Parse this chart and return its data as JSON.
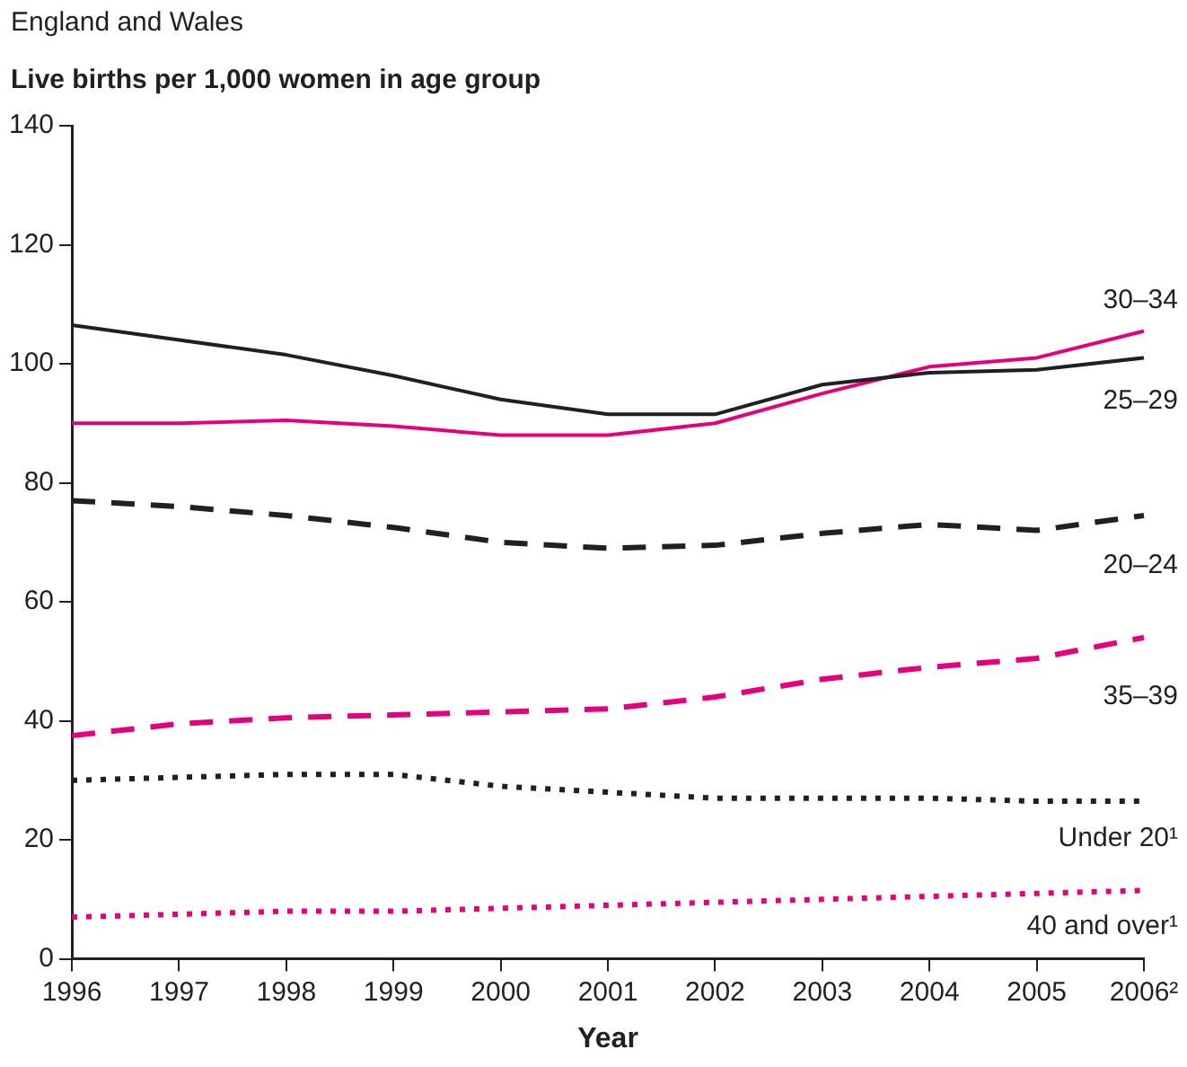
{
  "chart_data": {
    "type": "line",
    "title": "England and Wales",
    "ylabel": "Live births per 1,000 women in age group",
    "xlabel": "Year",
    "categories": [
      "1996",
      "1997",
      "1998",
      "1999",
      "2000",
      "2001",
      "2002",
      "2003",
      "2004",
      "2005",
      "2006²"
    ],
    "ylim": [
      0,
      140
    ],
    "yticks": [
      0,
      20,
      40,
      60,
      80,
      100,
      120,
      140
    ],
    "grid": false,
    "legend": false,
    "marker": "none",
    "series": [
      {
        "name": "25–29",
        "color": "#231f20",
        "line_style": "solid",
        "values": [
          106.5,
          104,
          101.5,
          98,
          94,
          91.5,
          91.5,
          96.5,
          98.5,
          99,
          101
        ]
      },
      {
        "name": "30–34",
        "color": "#e6007e",
        "line_style": "solid",
        "values": [
          90,
          90,
          90.5,
          89.5,
          88,
          88,
          90,
          95,
          99.5,
          101,
          105.5
        ]
      },
      {
        "name": "20–24",
        "color": "#231f20",
        "line_style": "dashed",
        "values": [
          77,
          76,
          74.5,
          72.5,
          70,
          69,
          69.5,
          71.5,
          73,
          72,
          74.5
        ]
      },
      {
        "name": "35–39",
        "color": "#e6007e",
        "line_style": "dashed",
        "values": [
          37.5,
          39.5,
          40.5,
          41,
          41.5,
          42,
          44,
          47,
          49,
          50.5,
          54
        ]
      },
      {
        "name": "Under 20¹",
        "color": "#231f20",
        "line_style": "dotted",
        "values": [
          30,
          30.5,
          31,
          31,
          29,
          28,
          27,
          27,
          27,
          26.5,
          26.5
        ]
      },
      {
        "name": "40 and over¹",
        "color": "#e6007e",
        "line_style": "dotted",
        "values": [
          7,
          7.5,
          8,
          8,
          8.5,
          9,
          9.5,
          10,
          10.5,
          11,
          11.5
        ]
      }
    ]
  }
}
